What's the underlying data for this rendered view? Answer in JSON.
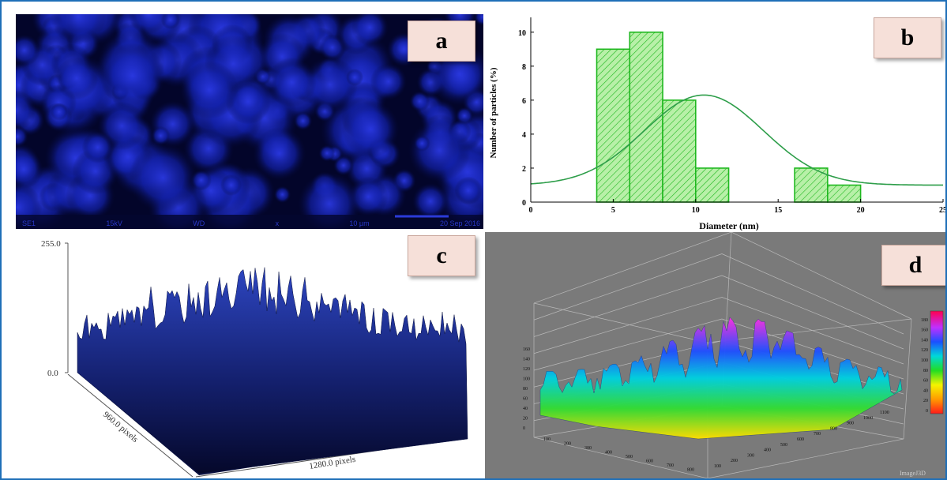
{
  "panels": {
    "a": {
      "label": "a",
      "footer": [
        "SE1",
        "15kV",
        "WD",
        "x",
        "10 µm",
        "20 Sep 2016"
      ]
    },
    "b": {
      "label": "b"
    },
    "c": {
      "label": "c",
      "z_top": "255.0",
      "z_bottom": "0.0",
      "y_axis_label": "960.0 pixels",
      "x_axis_label": "1280.0 pixels"
    },
    "d": {
      "label": "d",
      "watermark": "ImageJ3D",
      "z_ticks": [
        "0",
        "20",
        "40",
        "60",
        "80",
        "100",
        "120",
        "140",
        "160"
      ],
      "x_ticks": [
        "100",
        "200",
        "300",
        "400",
        "500",
        "600",
        "700",
        "800"
      ],
      "y_ticks": [
        "100",
        "200",
        "300",
        "400",
        "500",
        "600",
        "700",
        "800",
        "900",
        "1000",
        "1100"
      ],
      "colorbar_ticks": [
        "0",
        "20",
        "40",
        "60",
        "80",
        "100",
        "120",
        "140",
        "160",
        "180"
      ],
      "colors": {
        "background": "#7a7a7a"
      }
    }
  },
  "chart_data": {
    "type": "bar",
    "xlabel": "Diameter (nm)",
    "ylabel": "Number of particles (%)",
    "xlim": [
      0,
      25
    ],
    "ylim": [
      0,
      10.5
    ],
    "x_ticks": [
      "0",
      "5",
      "10",
      "15",
      "20",
      "25"
    ],
    "y_ticks": [
      "0",
      "2",
      "4",
      "6",
      "8",
      "10"
    ],
    "bins": [
      {
        "start": 4,
        "end": 6,
        "value": 9
      },
      {
        "start": 6,
        "end": 8,
        "value": 10
      },
      {
        "start": 8,
        "end": 10,
        "value": 6
      },
      {
        "start": 10,
        "end": 12,
        "value": 2
      },
      {
        "start": 16,
        "end": 18,
        "value": 2
      },
      {
        "start": 18,
        "end": 20,
        "value": 1
      }
    ],
    "fit_curve": {
      "type": "gaussian",
      "center": 10.5,
      "peak": 6.3,
      "offset": 1.0,
      "sigma": 3.6
    },
    "colors": {
      "bar_fill": "#b8f0a8",
      "bar_edge": "#1fb81f",
      "curve": "#2e9e4a"
    }
  }
}
